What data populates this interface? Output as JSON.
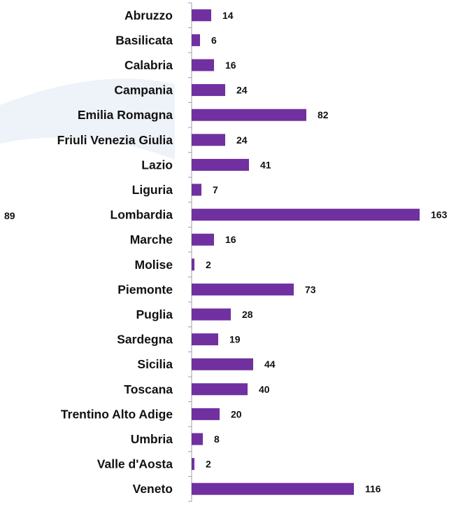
{
  "stray_value": "89",
  "chart_data": {
    "type": "bar",
    "orientation": "horizontal",
    "categories": [
      "Abruzzo",
      "Basilicata",
      "Calabria",
      "Campania",
      "Emilia Romagna",
      "Friuli Venezia Giulia",
      "Lazio",
      "Liguria",
      "Lombardia",
      "Marche",
      "Molise",
      "Piemonte",
      "Puglia",
      "Sardegna",
      "Sicilia",
      "Toscana",
      "Trentino Alto Adige",
      "Umbria",
      "Valle d'Aosta",
      "Veneto"
    ],
    "values": [
      14,
      6,
      16,
      24,
      82,
      24,
      41,
      7,
      163,
      16,
      2,
      73,
      28,
      19,
      44,
      40,
      20,
      8,
      2,
      116
    ],
    "bar_color": "#7030a0",
    "xlim": [
      0,
      175
    ],
    "grid": false,
    "legend": "none"
  }
}
